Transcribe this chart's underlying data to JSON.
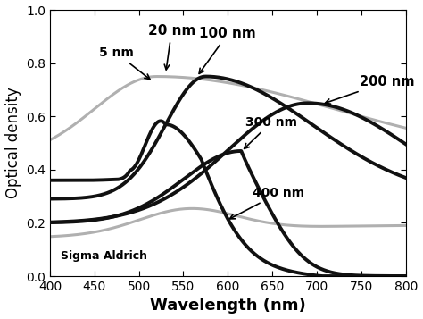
{
  "xlim": [
    400,
    800
  ],
  "ylim": [
    0.0,
    1.0
  ],
  "xlabel": "Wavelength (nm)",
  "ylabel": "Optical density",
  "xlabel_fontsize": 13,
  "ylabel_fontsize": 12,
  "tick_fontsize": 10,
  "watermark": "Sigma Aldrich",
  "gray_color": "#b0b0b0",
  "black_color": "#111111",
  "lw_gray": 2.2,
  "lw_black": 2.8
}
